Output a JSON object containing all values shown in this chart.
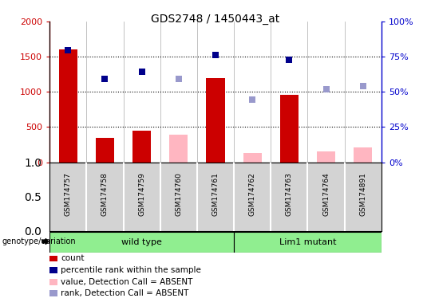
{
  "title": "GDS2748 / 1450443_at",
  "samples": [
    "GSM174757",
    "GSM174758",
    "GSM174759",
    "GSM174760",
    "GSM174761",
    "GSM174762",
    "GSM174763",
    "GSM174764",
    "GSM174891"
  ],
  "count_values": [
    1600,
    350,
    450,
    null,
    1190,
    null,
    960,
    null,
    null
  ],
  "count_absent_values": [
    null,
    null,
    null,
    390,
    null,
    130,
    null,
    155,
    215
  ],
  "percentile_values": [
    1590,
    1185,
    1285,
    null,
    1520,
    null,
    1455,
    null,
    null
  ],
  "rank_absent_values": [
    null,
    null,
    null,
    1185,
    null,
    890,
    null,
    1035,
    1085
  ],
  "ylim_left": [
    0,
    2000
  ],
  "ylim_right": [
    0,
    100
  ],
  "yticks_left": [
    0,
    500,
    1000,
    1500,
    2000
  ],
  "yticks_right": [
    0,
    25,
    50,
    75,
    100
  ],
  "ytick_labels_left": [
    "0",
    "500",
    "1000",
    "1500",
    "2000"
  ],
  "ytick_labels_right": [
    "0%",
    "25%",
    "50%",
    "75%",
    "100%"
  ],
  "wt_count": 5,
  "lm_count": 4,
  "group_labels": [
    "wild type",
    "Lim1 mutant"
  ],
  "group_color": "#90EE90",
  "bar_color_present": "#CC0000",
  "bar_color_absent": "#FFB6C1",
  "marker_color_present": "#00008B",
  "marker_color_absent": "#9999CC",
  "legend_items": [
    {
      "color": "#CC0000",
      "label": "count"
    },
    {
      "color": "#00008B",
      "label": "percentile rank within the sample"
    },
    {
      "color": "#FFB6C1",
      "label": "value, Detection Call = ABSENT"
    },
    {
      "color": "#9999CC",
      "label": "rank, Detection Call = ABSENT"
    }
  ],
  "annotation_text": "genotype/variation",
  "sample_box_color": "#d3d3d3",
  "bar_width": 0.5,
  "marker_size": 6
}
